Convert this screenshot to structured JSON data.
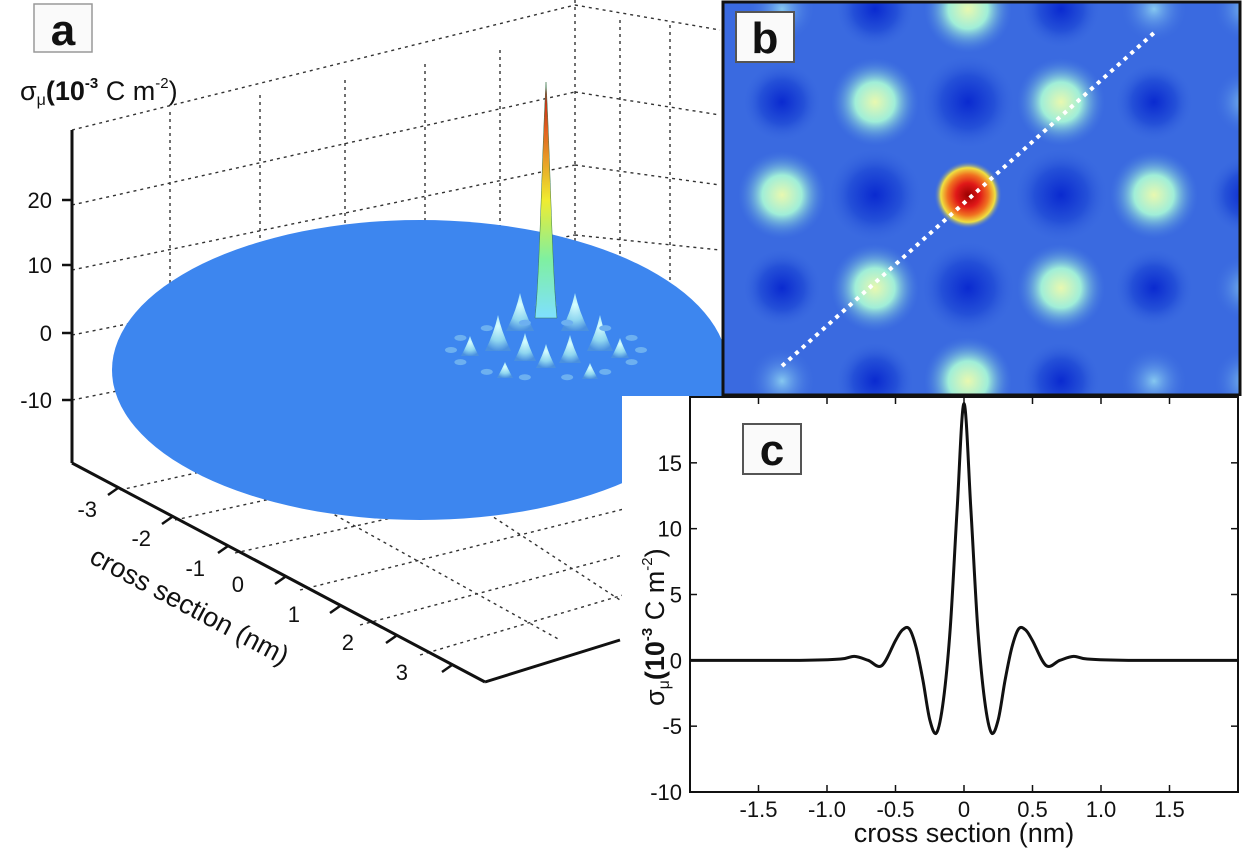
{
  "chart_data": [
    {
      "panel": "a",
      "type": "surface",
      "zlabel": "σμ(10⁻³ C m⁻²)",
      "zlabel_parts": {
        "symbol": "σ",
        "subscript": "μ",
        "unit_pre": "(10",
        "unit_exp": "-3",
        "unit_mid": " C m",
        "unit_exp2": "-2",
        "unit_post": ")"
      },
      "ylabel": "cross section (nm)",
      "z_ticks": [
        "20",
        "10",
        "0",
        "-10"
      ],
      "y_ticks": [
        "-3",
        "-2",
        "-1",
        "0",
        "1",
        "2",
        "3"
      ],
      "peak_value": 25,
      "grid": true
    },
    {
      "panel": "b",
      "type": "heatmap",
      "line": "dotted diagonal",
      "colormap": [
        "#3b6fe0",
        "#1a3fd0",
        "#9fe8e0",
        "#f5e44a",
        "#e0261c"
      ]
    },
    {
      "panel": "c",
      "type": "line",
      "xlabel": "cross section (nm)",
      "ylabel_parts": {
        "symbol": "σ",
        "subscript": "μ",
        "unit_pre": "(10",
        "unit_exp": "-3",
        "unit_mid": " C m",
        "unit_exp2": "-2",
        "unit_post": ")"
      },
      "xlim": [
        -2,
        2
      ],
      "ylim": [
        -10,
        20
      ],
      "x_ticks": [
        "-1.5",
        "-1.0",
        "-0.5",
        "0",
        "0.5",
        "1.0",
        "1.5"
      ],
      "x_tick_values": [
        -1.5,
        -1.0,
        -0.5,
        0,
        0.5,
        1.0,
        1.5
      ],
      "y_ticks": [
        "-10",
        "-5",
        "0",
        "5",
        "10",
        "15"
      ],
      "y_tick_values": [
        -10,
        -5,
        0,
        5,
        10,
        15
      ],
      "series": [
        {
          "x": [
            -2.0,
            -1.2,
            -0.9,
            -0.8,
            -0.7,
            -0.6,
            -0.5,
            -0.45,
            -0.4,
            -0.35,
            -0.3,
            -0.25,
            -0.2,
            -0.15,
            -0.1,
            -0.05,
            0,
            0.05,
            0.1,
            0.15,
            0.2,
            0.25,
            0.3,
            0.35,
            0.4,
            0.45,
            0.5,
            0.6,
            0.7,
            0.8,
            0.9,
            1.2,
            2.0
          ],
          "y": [
            0,
            0,
            0.1,
            0.3,
            0,
            -0.4,
            1.5,
            2.3,
            2.4,
            1.0,
            -1.5,
            -4.5,
            -5.5,
            -3.0,
            2.5,
            11.5,
            19.5,
            11.5,
            2.5,
            -3.0,
            -5.5,
            -4.5,
            -1.5,
            1.0,
            2.4,
            2.3,
            1.5,
            -0.4,
            0,
            0.3,
            0.1,
            0,
            0
          ]
        }
      ]
    }
  ],
  "labels": {
    "a": "a",
    "b": "b",
    "c": "c"
  }
}
